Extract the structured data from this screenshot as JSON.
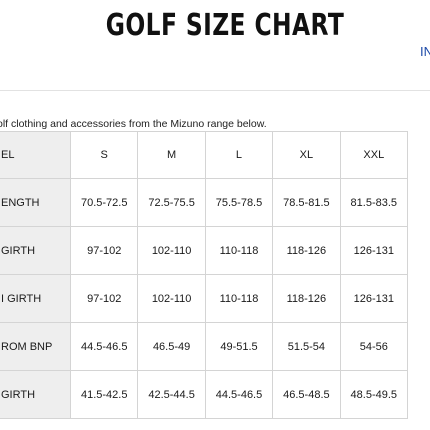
{
  "page": {
    "title": "GOLF SIZE CHART",
    "tab_link": "IN",
    "intro": "olf clothing and accessories from the Mizuno range below."
  },
  "table": {
    "header": [
      "EL",
      "S",
      "M",
      "L",
      "XL",
      "XXL"
    ],
    "rows": [
      {
        "label": "ENGTH",
        "values": [
          "70.5-72.5",
          "72.5-75.5",
          "75.5-78.5",
          "78.5-81.5",
          "81.5-83.5"
        ]
      },
      {
        "label": " GIRTH",
        "values": [
          "97-102",
          "102-110",
          "110-118",
          "118-126",
          "126-131"
        ]
      },
      {
        "label": "I GIRTH",
        "values": [
          "97-102",
          "102-110",
          "110-118",
          "118-126",
          "126-131"
        ]
      },
      {
        "label": "ROM BNP",
        "values": [
          "44.5-46.5",
          "46.5-49",
          "49-51.5",
          "51.5-54",
          "54-56"
        ]
      },
      {
        "label": " GIRTH",
        "values": [
          "41.5-42.5",
          "42.5-44.5",
          "44.5-46.5",
          "46.5-48.5",
          "48.5-49.5"
        ]
      }
    ]
  },
  "colors": {
    "label_column_bg": "#eeeeee",
    "border": "#d4d4d4",
    "link": "#1d4aa8"
  }
}
